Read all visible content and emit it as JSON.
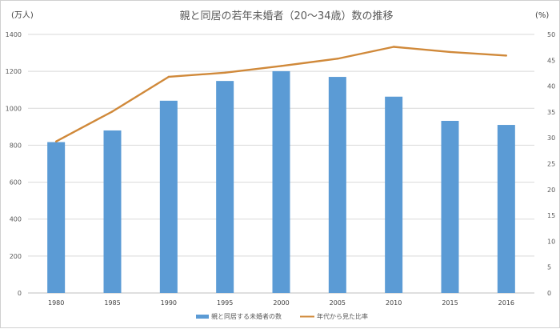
{
  "chart_data": {
    "type": "bar",
    "title": "親と同居の若年未婚者（20～34歳）数の推移",
    "y_left_unit": "(万人)",
    "y_right_unit": "(%)",
    "categories": [
      "1980",
      "1985",
      "1990",
      "1995",
      "2000",
      "2005",
      "2010",
      "2015",
      "2016"
    ],
    "y_left_ticks": [
      "0",
      "200",
      "400",
      "600",
      "800",
      "1000",
      "1200",
      "1400"
    ],
    "y_right_ticks": [
      "0",
      "5",
      "10",
      "15",
      "20",
      "25",
      "30",
      "35",
      "40",
      "45",
      "50"
    ],
    "ylim_left": [
      0,
      1400
    ],
    "ylim_right": [
      0,
      50
    ],
    "grid": true,
    "legend_position": "bottom",
    "series": [
      {
        "name": "親と同居する未婚者の数",
        "type": "bar",
        "axis": "left",
        "color": "#5b9bd5",
        "values": [
          817,
          880,
          1041,
          1148,
          1201,
          1170,
          1063,
          932,
          910
        ]
      },
      {
        "name": "年代から見た比率",
        "type": "line",
        "axis": "right",
        "color": "#d0893a",
        "values": [
          29.3,
          35.1,
          41.8,
          42.6,
          43.9,
          45.3,
          47.6,
          46.6,
          45.9
        ]
      }
    ]
  }
}
